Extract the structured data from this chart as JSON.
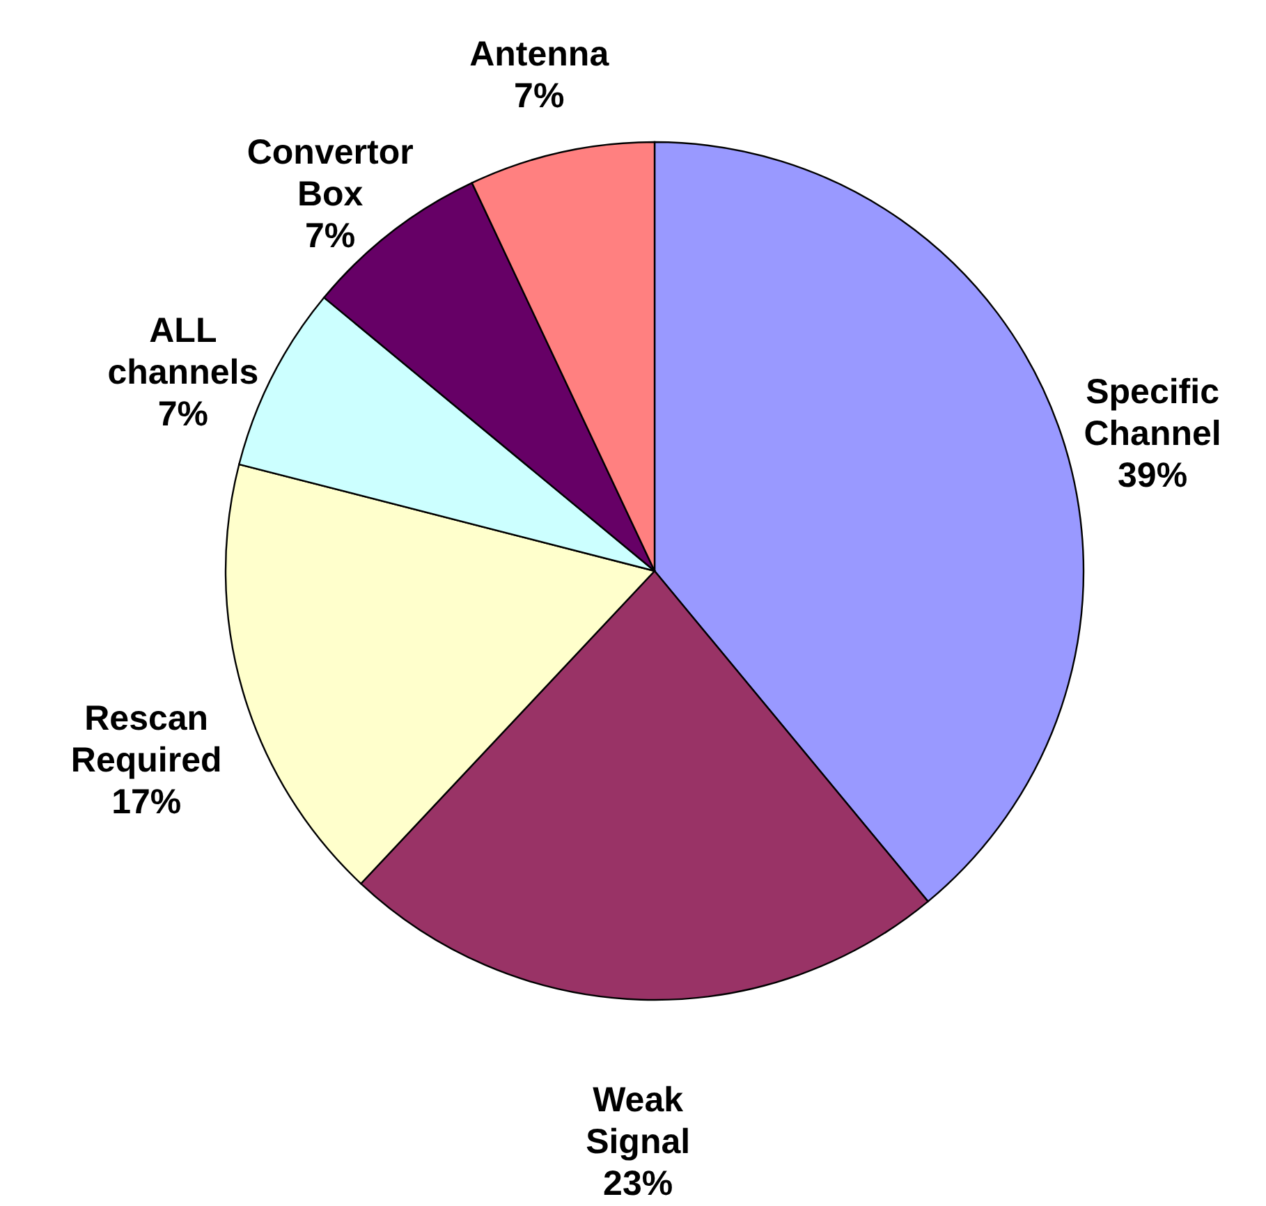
{
  "chart_data": {
    "type": "pie",
    "categories": [
      "Specific Channel",
      "Weak Signal",
      "Rescan Required",
      "ALL channels",
      "Convertor Box",
      "Antenna"
    ],
    "values": [
      39,
      23,
      17,
      7,
      7,
      7
    ],
    "colors": [
      "#9999ff",
      "#993366",
      "#ffffcc",
      "#ccffff",
      "#660066",
      "#ff8080"
    ],
    "value_labels": [
      "39%",
      "23%",
      "17%",
      "7%",
      "7%",
      "7%"
    ]
  }
}
